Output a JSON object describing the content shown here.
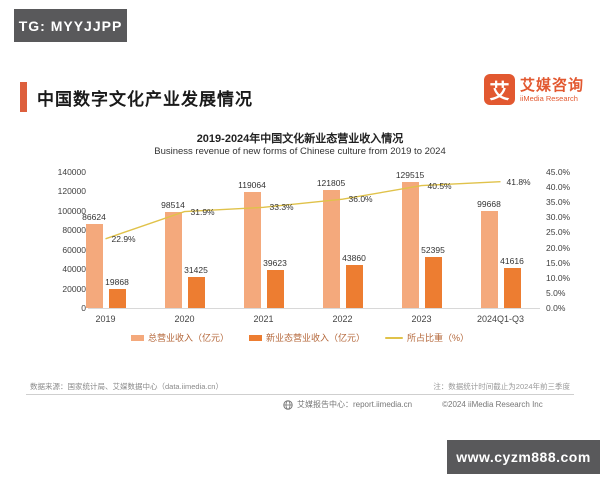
{
  "badges": {
    "telegram": "TG: MYYJJPP",
    "website": "www.cyzm888.com"
  },
  "header": {
    "title": "中国数字文化产业发展情况",
    "accent_color": "#dd5f3d",
    "logo": {
      "mark": "艾",
      "name_cn": "艾媒咨询",
      "name_en": "iiMedia Research",
      "brand_color": "#e25830"
    }
  },
  "chart_data": {
    "type": "bar+line",
    "title": "2019-2024年中国文化新业态营业收入情况",
    "subtitle": "Business revenue of new forms of Chinese culture from 2019 to 2024",
    "categories": [
      "2019",
      "2020",
      "2021",
      "2022",
      "2023",
      "2024Q1-Q3"
    ],
    "series": [
      {
        "id": "total-revenue",
        "name": "总营业收入（亿元）",
        "type": "bar",
        "color": "#f4a97c",
        "values": [
          86624,
          98514,
          119064,
          121805,
          129515,
          99668
        ]
      },
      {
        "id": "new-forms-revenue",
        "name": "新业态营业收入（亿元）",
        "type": "bar",
        "color": "#ed7d31",
        "values": [
          19868,
          31425,
          39623,
          43860,
          52395,
          41616
        ]
      },
      {
        "id": "share-ratio",
        "name": "所占比重（%）",
        "type": "line",
        "color": "#e0c24a",
        "values": [
          22.9,
          31.9,
          33.3,
          36.0,
          40.5,
          41.8
        ]
      }
    ],
    "left_axis": {
      "min": 0,
      "max": 140000,
      "step": 20000
    },
    "right_axis": {
      "min": 0,
      "max": 45,
      "step": 5,
      "suffix": "%",
      "decimals": 1
    },
    "legend_position": "bottom",
    "grid": false
  },
  "footnotes": {
    "source": "数据来源：国家统计局、艾媒数据中心（data.iimedia.cn）",
    "note": "注：数据统计时间截止为2024年前三季度"
  },
  "footer": {
    "report_center": "艾媒报告中心：report.iimedia.cn",
    "copyright": "©2024 iiMedia Research Inc"
  }
}
